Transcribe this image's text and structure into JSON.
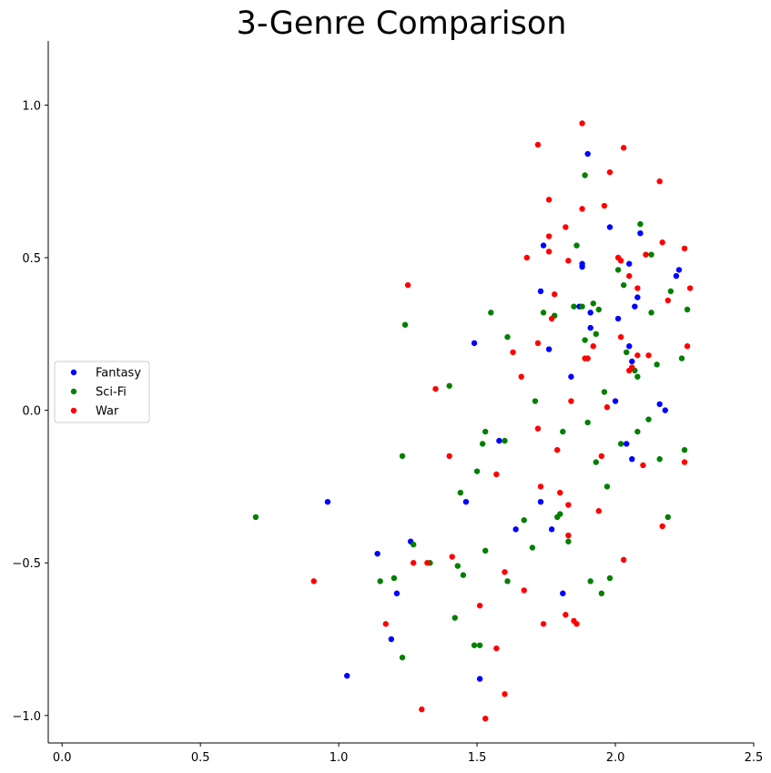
{
  "chart_data": {
    "type": "scatter",
    "title": "3-Genre Comparison",
    "xlabel": "",
    "ylabel": "",
    "xlim": [
      -0.05,
      2.5
    ],
    "ylim": [
      -1.09,
      1.21
    ],
    "xticks": [
      0.0,
      0.5,
      1.0,
      1.5,
      2.0,
      2.5
    ],
    "xtick_labels": [
      "0.0",
      "0.5",
      "1.0",
      "1.5",
      "2.0",
      "2.5"
    ],
    "yticks": [
      -1.0,
      -0.5,
      0.0,
      0.5,
      1.0
    ],
    "ytick_labels": [
      "−1.0",
      "−0.5",
      "0.0",
      "0.5",
      "1.0"
    ],
    "grid": false,
    "legend_position": "center-left",
    "series": [
      {
        "name": "Fantasy",
        "color": "#0000ff",
        "points": [
          [
            0.96,
            -0.3
          ],
          [
            1.03,
            -0.87
          ],
          [
            1.14,
            -0.47
          ],
          [
            1.19,
            -0.75
          ],
          [
            1.21,
            -0.6
          ],
          [
            1.26,
            -0.43
          ],
          [
            1.46,
            -0.3
          ],
          [
            1.49,
            0.22
          ],
          [
            1.51,
            -0.88
          ],
          [
            1.58,
            -0.1
          ],
          [
            1.64,
            -0.39
          ],
          [
            1.73,
            0.39
          ],
          [
            1.73,
            -0.3
          ],
          [
            1.74,
            0.54
          ],
          [
            1.76,
            0.2
          ],
          [
            1.77,
            -0.39
          ],
          [
            1.81,
            -0.6
          ],
          [
            1.84,
            0.11
          ],
          [
            1.87,
            0.34
          ],
          [
            1.88,
            0.47
          ],
          [
            1.88,
            0.48
          ],
          [
            1.9,
            0.84
          ],
          [
            1.91,
            0.27
          ],
          [
            1.91,
            0.32
          ],
          [
            1.98,
            0.6
          ],
          [
            2.0,
            0.03
          ],
          [
            2.01,
            0.3
          ],
          [
            2.04,
            -0.11
          ],
          [
            2.05,
            0.48
          ],
          [
            2.05,
            0.21
          ],
          [
            2.06,
            0.16
          ],
          [
            2.06,
            -0.16
          ],
          [
            2.07,
            0.34
          ],
          [
            2.08,
            0.37
          ],
          [
            2.09,
            0.58
          ],
          [
            2.16,
            0.02
          ],
          [
            2.18,
            0.0
          ],
          [
            2.22,
            0.44
          ],
          [
            2.23,
            0.46
          ]
        ]
      },
      {
        "name": "Sci-Fi",
        "color": "#007f00",
        "points": [
          [
            0.7,
            -0.35
          ],
          [
            1.15,
            -0.56
          ],
          [
            1.2,
            -0.55
          ],
          [
            1.23,
            -0.15
          ],
          [
            1.23,
            -0.81
          ],
          [
            1.24,
            0.28
          ],
          [
            1.27,
            -0.44
          ],
          [
            1.33,
            -0.5
          ],
          [
            1.4,
            0.08
          ],
          [
            1.42,
            -0.68
          ],
          [
            1.43,
            -0.51
          ],
          [
            1.44,
            -0.27
          ],
          [
            1.45,
            -0.54
          ],
          [
            1.49,
            -0.77
          ],
          [
            1.5,
            -0.2
          ],
          [
            1.51,
            -0.77
          ],
          [
            1.52,
            -0.11
          ],
          [
            1.53,
            -0.07
          ],
          [
            1.53,
            -0.46
          ],
          [
            1.55,
            0.32
          ],
          [
            1.6,
            -0.1
          ],
          [
            1.61,
            0.24
          ],
          [
            1.61,
            -0.56
          ],
          [
            1.67,
            -0.36
          ],
          [
            1.7,
            -0.45
          ],
          [
            1.71,
            0.03
          ],
          [
            1.74,
            0.32
          ],
          [
            1.78,
            0.31
          ],
          [
            1.79,
            -0.35
          ],
          [
            1.8,
            -0.34
          ],
          [
            1.81,
            -0.07
          ],
          [
            1.83,
            -0.43
          ],
          [
            1.85,
            0.34
          ],
          [
            1.86,
            0.54
          ],
          [
            1.88,
            0.34
          ],
          [
            1.89,
            0.77
          ],
          [
            1.89,
            0.23
          ],
          [
            1.9,
            -0.04
          ],
          [
            1.91,
            -0.56
          ],
          [
            1.92,
            0.35
          ],
          [
            1.93,
            0.25
          ],
          [
            1.93,
            -0.17
          ],
          [
            1.94,
            0.33
          ],
          [
            1.95,
            -0.6
          ],
          [
            1.96,
            0.06
          ],
          [
            1.97,
            -0.25
          ],
          [
            1.98,
            -0.55
          ],
          [
            2.01,
            0.46
          ],
          [
            2.02,
            -0.11
          ],
          [
            2.03,
            0.41
          ],
          [
            2.04,
            0.19
          ],
          [
            2.06,
            0.14
          ],
          [
            2.07,
            0.13
          ],
          [
            2.08,
            -0.07
          ],
          [
            2.08,
            0.11
          ],
          [
            2.09,
            0.61
          ],
          [
            2.12,
            -0.03
          ],
          [
            2.13,
            0.51
          ],
          [
            2.13,
            0.32
          ],
          [
            2.15,
            0.15
          ],
          [
            2.16,
            -0.16
          ],
          [
            2.19,
            -0.35
          ],
          [
            2.2,
            0.39
          ],
          [
            2.24,
            0.17
          ],
          [
            2.25,
            -0.13
          ],
          [
            2.26,
            0.33
          ]
        ]
      },
      {
        "name": "War",
        "color": "#ff0000",
        "points": [
          [
            0.91,
            -0.56
          ],
          [
            1.17,
            -0.7
          ],
          [
            1.25,
            0.41
          ],
          [
            1.27,
            -0.5
          ],
          [
            1.3,
            -0.98
          ],
          [
            1.32,
            -0.5
          ],
          [
            1.35,
            0.07
          ],
          [
            1.4,
            -0.15
          ],
          [
            1.41,
            -0.48
          ],
          [
            1.51,
            -0.64
          ],
          [
            1.53,
            -1.01
          ],
          [
            1.57,
            -0.21
          ],
          [
            1.57,
            -0.78
          ],
          [
            1.6,
            -0.53
          ],
          [
            1.6,
            -0.93
          ],
          [
            1.63,
            0.19
          ],
          [
            1.66,
            0.11
          ],
          [
            1.67,
            -0.59
          ],
          [
            1.68,
            0.5
          ],
          [
            1.72,
            0.87
          ],
          [
            1.72,
            0.22
          ],
          [
            1.72,
            -0.06
          ],
          [
            1.73,
            -0.25
          ],
          [
            1.74,
            -0.7
          ],
          [
            1.76,
            0.69
          ],
          [
            1.76,
            0.57
          ],
          [
            1.76,
            0.52
          ],
          [
            1.77,
            0.3
          ],
          [
            1.78,
            0.38
          ],
          [
            1.79,
            -0.13
          ],
          [
            1.8,
            -0.27
          ],
          [
            1.82,
            0.6
          ],
          [
            1.82,
            -0.67
          ],
          [
            1.83,
            0.49
          ],
          [
            1.83,
            -0.31
          ],
          [
            1.83,
            -0.41
          ],
          [
            1.84,
            0.03
          ],
          [
            1.85,
            -0.69
          ],
          [
            1.86,
            -0.7
          ],
          [
            1.88,
            0.94
          ],
          [
            1.88,
            0.66
          ],
          [
            1.89,
            0.17
          ],
          [
            1.9,
            0.17
          ],
          [
            1.92,
            0.21
          ],
          [
            1.94,
            -0.33
          ],
          [
            1.95,
            -0.15
          ],
          [
            1.96,
            0.67
          ],
          [
            1.97,
            0.01
          ],
          [
            1.98,
            0.78
          ],
          [
            2.01,
            0.5
          ],
          [
            2.02,
            0.49
          ],
          [
            2.02,
            0.24
          ],
          [
            2.03,
            -0.49
          ],
          [
            2.03,
            0.86
          ],
          [
            2.05,
            0.44
          ],
          [
            2.05,
            0.13
          ],
          [
            2.06,
            0.14
          ],
          [
            2.08,
            0.4
          ],
          [
            2.08,
            0.18
          ],
          [
            2.1,
            -0.18
          ],
          [
            2.11,
            0.51
          ],
          [
            2.12,
            0.18
          ],
          [
            2.16,
            0.75
          ],
          [
            2.17,
            0.55
          ],
          [
            2.17,
            -0.38
          ],
          [
            2.19,
            0.36
          ],
          [
            2.25,
            0.53
          ],
          [
            2.25,
            -0.17
          ],
          [
            2.26,
            0.21
          ],
          [
            2.27,
            0.4
          ]
        ]
      }
    ]
  }
}
